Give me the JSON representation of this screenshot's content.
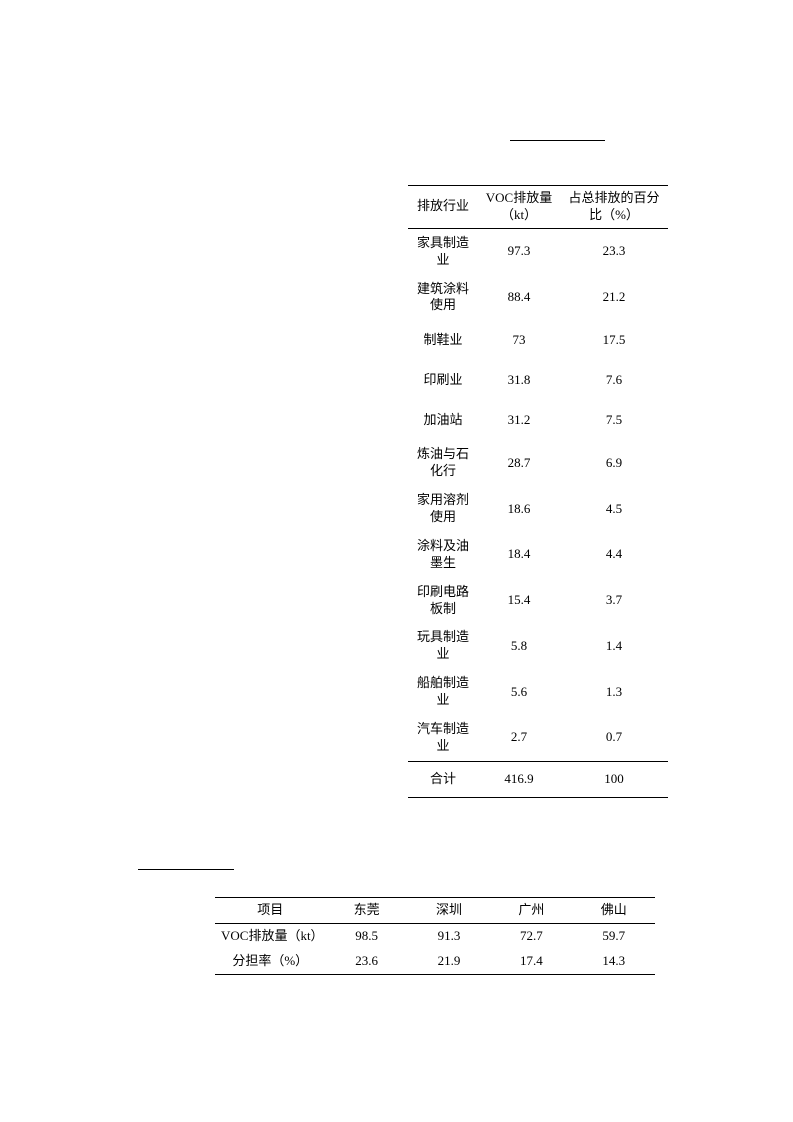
{
  "table1": {
    "headers": {
      "col1": "排放行业",
      "col2": "VOC排放量（kt）",
      "col3": "占总排放的百分比（%）"
    },
    "rows": [
      {
        "industry": "家具制造业",
        "emission": "97.3",
        "percent": "23.3"
      },
      {
        "industry": "建筑涂料使用",
        "emission": "88.4",
        "percent": "21.2"
      },
      {
        "industry": "制鞋业",
        "emission": "73",
        "percent": "17.5"
      },
      {
        "industry": "印刷业",
        "emission": "31.8",
        "percent": "7.6"
      },
      {
        "industry": "加油站",
        "emission": "31.2",
        "percent": "7.5"
      },
      {
        "industry": "炼油与石化行",
        "emission": "28.7",
        "percent": "6.9"
      },
      {
        "industry": "家用溶剂使用",
        "emission": "18.6",
        "percent": "4.5"
      },
      {
        "industry": "涂料及油墨生",
        "emission": "18.4",
        "percent": "4.4"
      },
      {
        "industry": "印刷电路板制",
        "emission": "15.4",
        "percent": "3.7"
      },
      {
        "industry": "玩具制造业",
        "emission": "5.8",
        "percent": "1.4"
      },
      {
        "industry": "船舶制造业",
        "emission": "5.6",
        "percent": "1.3"
      },
      {
        "industry": "汽车制造业",
        "emission": "2.7",
        "percent": "0.7"
      }
    ],
    "total": {
      "label": "合计",
      "emission": "416.9",
      "percent": "100"
    }
  },
  "table2": {
    "headers": {
      "col1": "项目",
      "cities": [
        "东莞",
        "深圳",
        "广州",
        "佛山"
      ]
    },
    "rows": [
      {
        "label": "VOC排放量（kt）",
        "values": [
          "98.5",
          "91.3",
          "72.7",
          "59.7"
        ]
      },
      {
        "label": "分担率（%）",
        "values": [
          "23.6",
          "21.9",
          "17.4",
          "14.3"
        ]
      }
    ]
  }
}
